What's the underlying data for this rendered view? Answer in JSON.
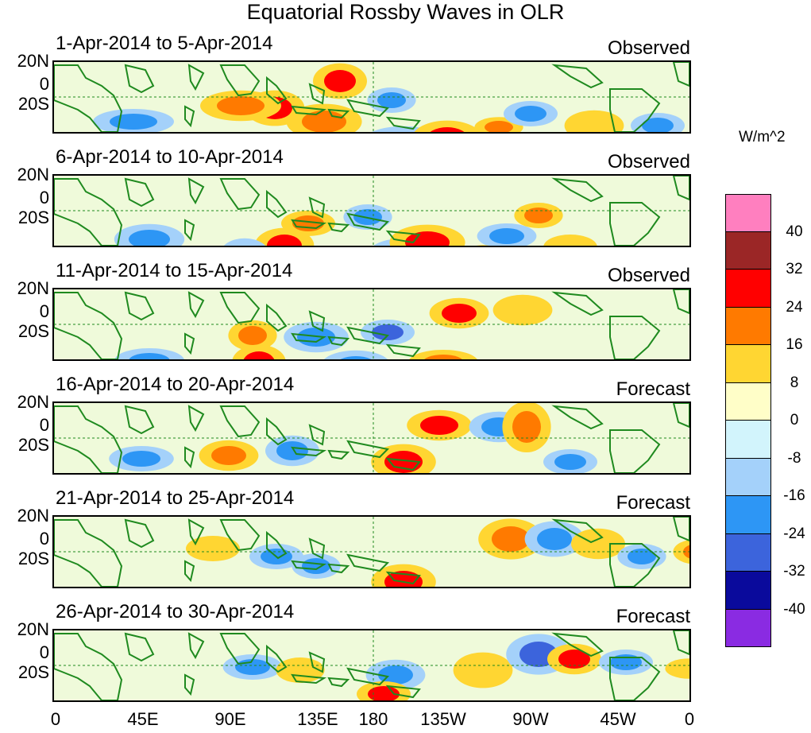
{
  "title": "Equatorial Rossby Waves in OLR",
  "lat_labels": [
    "20N",
    "0",
    "20S"
  ],
  "lon_labels": [
    "0",
    "45E",
    "90E",
    "135E",
    "180",
    "135W",
    "90W",
    "45W",
    "0"
  ],
  "colorbar": {
    "units": "W/m^2",
    "levels": [
      "40",
      "32",
      "24",
      "16",
      "8",
      "0",
      "-8",
      "-16",
      "-24",
      "-32",
      "-40"
    ],
    "colors": [
      "#ff7fbf",
      "#9b2626",
      "#ff0000",
      "#ff7a00",
      "#ffd632",
      "#fffec8",
      "#d2f4fc",
      "#a4d1fa",
      "#2d96f5",
      "#3c64dc",
      "#0a0a9c",
      "#8a2be2"
    ]
  },
  "panels": [
    {
      "date": "1-Apr-2014 to 5-Apr-2014",
      "status": "Observed"
    },
    {
      "date": "6-Apr-2014 to 10-Apr-2014",
      "status": "Observed"
    },
    {
      "date": "11-Apr-2014 to 15-Apr-2014",
      "status": "Observed"
    },
    {
      "date": "16-Apr-2014 to 20-Apr-2014",
      "status": "Forecast"
    },
    {
      "date": "21-Apr-2014 to 25-Apr-2014",
      "status": "Forecast"
    },
    {
      "date": "26-Apr-2014 to 30-Apr-2014",
      "status": "Forecast"
    }
  ],
  "map_colors": {
    "land": "#1f8a1f",
    "background": "#fffec8"
  }
}
